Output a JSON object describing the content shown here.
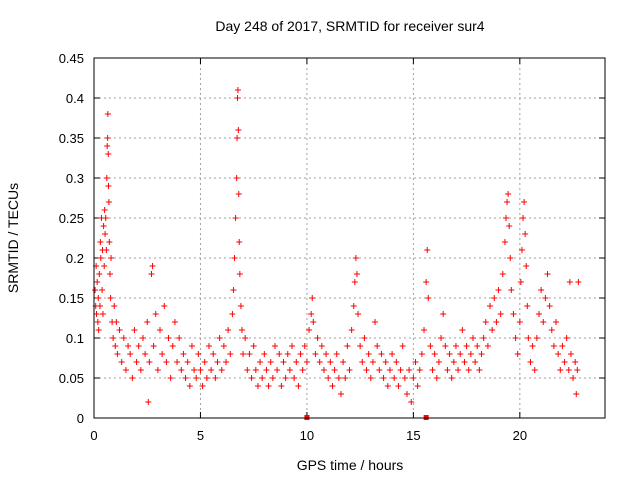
{
  "chart_data": {
    "type": "scatter",
    "title": "Day 248 of 2017, SRMTID for receiver sur4",
    "xlabel": "GPS time / hours",
    "ylabel": "SRMTID / TECUs",
    "xlim": [
      0,
      24
    ],
    "ylim": [
      0,
      0.45
    ],
    "grid": true,
    "marker": "+",
    "color": "#ff0000",
    "x_ticks": [
      0,
      5,
      10,
      15,
      20
    ],
    "x_tick_labels": [
      "0",
      "5",
      "10",
      "15",
      "20"
    ],
    "y_ticks": [
      0,
      0.05,
      0.1,
      0.15,
      0.2,
      0.25,
      0.3,
      0.35,
      0.4,
      0.45
    ],
    "y_tick_labels": [
      "0",
      "0.05",
      "0.1",
      "0.15",
      "0.2",
      "0.25",
      "0.3",
      "0.35",
      "0.4",
      "0.45"
    ],
    "series": [
      {
        "name": "SRMTID",
        "points": [
          [
            0.05,
            0.16
          ],
          [
            0.08,
            0.14
          ],
          [
            0.1,
            0.19
          ],
          [
            0.12,
            0.13
          ],
          [
            0.15,
            0.17
          ],
          [
            0.18,
            0.12
          ],
          [
            0.2,
            0.15
          ],
          [
            0.22,
            0.11
          ],
          [
            0.25,
            0.18
          ],
          [
            0.28,
            0.14
          ],
          [
            0.3,
            0.22
          ],
          [
            0.32,
            0.2
          ],
          [
            0.35,
            0.25
          ],
          [
            0.38,
            0.16
          ],
          [
            0.4,
            0.21
          ],
          [
            0.42,
            0.13
          ],
          [
            0.45,
            0.24
          ],
          [
            0.48,
            0.19
          ],
          [
            0.5,
            0.26
          ],
          [
            0.52,
            0.23
          ],
          [
            0.55,
            0.25
          ],
          [
            0.58,
            0.21
          ],
          [
            0.6,
            0.3
          ],
          [
            0.62,
            0.34
          ],
          [
            0.64,
            0.35
          ],
          [
            0.65,
            0.38
          ],
          [
            0.67,
            0.33
          ],
          [
            0.68,
            0.29
          ],
          [
            0.7,
            0.27
          ],
          [
            0.72,
            0.22
          ],
          [
            0.75,
            0.18
          ],
          [
            0.78,
            0.15
          ],
          [
            0.8,
            0.2
          ],
          [
            0.85,
            0.12
          ],
          [
            0.9,
            0.1
          ],
          [
            0.95,
            0.14
          ],
          [
            1.0,
            0.09
          ],
          [
            1.05,
            0.12
          ],
          [
            1.1,
            0.08
          ],
          [
            1.2,
            0.11
          ],
          [
            1.3,
            0.07
          ],
          [
            1.4,
            0.1
          ],
          [
            1.5,
            0.06
          ],
          [
            1.6,
            0.09
          ],
          [
            1.7,
            0.08
          ],
          [
            1.8,
            0.05
          ],
          [
            1.9,
            0.11
          ],
          [
            2.0,
            0.07
          ],
          [
            2.1,
            0.09
          ],
          [
            2.2,
            0.06
          ],
          [
            2.3,
            0.1
          ],
          [
            2.4,
            0.08
          ],
          [
            2.5,
            0.12
          ],
          [
            2.55,
            0.02
          ],
          [
            2.6,
            0.07
          ],
          [
            2.7,
            0.18
          ],
          [
            2.75,
            0.19
          ],
          [
            2.8,
            0.09
          ],
          [
            2.9,
            0.13
          ],
          [
            3.0,
            0.06
          ],
          [
            3.1,
            0.11
          ],
          [
            3.2,
            0.08
          ],
          [
            3.3,
            0.14
          ],
          [
            3.4,
            0.07
          ],
          [
            3.5,
            0.1
          ],
          [
            3.6,
            0.05
          ],
          [
            3.7,
            0.09
          ],
          [
            3.8,
            0.12
          ],
          [
            3.9,
            0.07
          ],
          [
            4.0,
            0.1
          ],
          [
            4.1,
            0.06
          ],
          [
            4.2,
            0.08
          ],
          [
            4.3,
            0.05
          ],
          [
            4.4,
            0.07
          ],
          [
            4.5,
            0.04
          ],
          [
            4.6,
            0.09
          ],
          [
            4.7,
            0.06
          ],
          [
            4.8,
            0.05
          ],
          [
            4.9,
            0.08
          ],
          [
            5.0,
            0.06
          ],
          [
            5.1,
            0.04
          ],
          [
            5.2,
            0.07
          ],
          [
            5.3,
            0.05
          ],
          [
            5.4,
            0.09
          ],
          [
            5.5,
            0.06
          ],
          [
            5.6,
            0.08
          ],
          [
            5.7,
            0.05
          ],
          [
            5.8,
            0.07
          ],
          [
            5.9,
            0.1
          ],
          [
            6.0,
            0.06
          ],
          [
            6.1,
            0.09
          ],
          [
            6.2,
            0.07
          ],
          [
            6.3,
            0.11
          ],
          [
            6.4,
            0.08
          ],
          [
            6.5,
            0.13
          ],
          [
            6.55,
            0.16
          ],
          [
            6.6,
            0.2
          ],
          [
            6.65,
            0.25
          ],
          [
            6.7,
            0.3
          ],
          [
            6.72,
            0.35
          ],
          [
            6.74,
            0.4
          ],
          [
            6.76,
            0.41
          ],
          [
            6.78,
            0.36
          ],
          [
            6.8,
            0.28
          ],
          [
            6.82,
            0.22
          ],
          [
            6.85,
            0.18
          ],
          [
            6.9,
            0.14
          ],
          [
            6.95,
            0.11
          ],
          [
            7.0,
            0.08
          ],
          [
            7.1,
            0.1
          ],
          [
            7.2,
            0.06
          ],
          [
            7.3,
            0.08
          ],
          [
            7.4,
            0.05
          ],
          [
            7.5,
            0.09
          ],
          [
            7.6,
            0.06
          ],
          [
            7.7,
            0.04
          ],
          [
            7.8,
            0.07
          ],
          [
            7.9,
            0.05
          ],
          [
            8.0,
            0.08
          ],
          [
            8.1,
            0.06
          ],
          [
            8.2,
            0.04
          ],
          [
            8.3,
            0.07
          ],
          [
            8.4,
            0.05
          ],
          [
            8.5,
            0.09
          ],
          [
            8.6,
            0.06
          ],
          [
            8.7,
            0.08
          ],
          [
            8.8,
            0.04
          ],
          [
            8.9,
            0.07
          ],
          [
            9.0,
            0.05
          ],
          [
            9.1,
            0.08
          ],
          [
            9.2,
            0.06
          ],
          [
            9.3,
            0.09
          ],
          [
            9.4,
            0.05
          ],
          [
            9.5,
            0.07
          ],
          [
            9.6,
            0.04
          ],
          [
            9.7,
            0.08
          ],
          [
            9.8,
            0.06
          ],
          [
            9.9,
            0.09
          ],
          [
            10.0,
            0.07
          ],
          [
            10.1,
            0.11
          ],
          [
            10.2,
            0.13
          ],
          [
            10.25,
            0.15
          ],
          [
            10.3,
            0.12
          ],
          [
            10.4,
            0.08
          ],
          [
            10.5,
            0.1
          ],
          [
            10.6,
            0.07
          ],
          [
            10.7,
            0.09
          ],
          [
            10.8,
            0.06
          ],
          [
            10.9,
            0.08
          ],
          [
            11.0,
            0.05
          ],
          [
            11.1,
            0.07
          ],
          [
            11.2,
            0.04
          ],
          [
            11.3,
            0.06
          ],
          [
            11.4,
            0.08
          ],
          [
            11.5,
            0.05
          ],
          [
            11.6,
            0.03
          ],
          [
            11.7,
            0.07
          ],
          [
            11.8,
            0.05
          ],
          [
            11.9,
            0.09
          ],
          [
            12.0,
            0.06
          ],
          [
            12.1,
            0.11
          ],
          [
            12.2,
            0.14
          ],
          [
            12.25,
            0.17
          ],
          [
            12.3,
            0.2
          ],
          [
            12.35,
            0.18
          ],
          [
            12.4,
            0.13
          ],
          [
            12.5,
            0.09
          ],
          [
            12.6,
            0.07
          ],
          [
            12.7,
            0.1
          ],
          [
            12.8,
            0.06
          ],
          [
            12.9,
            0.08
          ],
          [
            13.0,
            0.05
          ],
          [
            13.1,
            0.07
          ],
          [
            13.2,
            0.12
          ],
          [
            13.3,
            0.09
          ],
          [
            13.4,
            0.06
          ],
          [
            13.5,
            0.08
          ],
          [
            13.6,
            0.05
          ],
          [
            13.7,
            0.07
          ],
          [
            13.8,
            0.04
          ],
          [
            13.9,
            0.06
          ],
          [
            14.0,
            0.08
          ],
          [
            14.1,
            0.05
          ],
          [
            14.2,
            0.07
          ],
          [
            14.3,
            0.04
          ],
          [
            14.4,
            0.06
          ],
          [
            14.5,
            0.09
          ],
          [
            14.6,
            0.05
          ],
          [
            14.7,
            0.03
          ],
          [
            14.8,
            0.06
          ],
          [
            14.9,
            0.02
          ],
          [
            15.0,
            0.05
          ],
          [
            15.1,
            0.07
          ],
          [
            15.2,
            0.04
          ],
          [
            15.3,
            0.06
          ],
          [
            15.4,
            0.08
          ],
          [
            15.5,
            0.11
          ],
          [
            15.6,
            0.17
          ],
          [
            15.65,
            0.21
          ],
          [
            15.7,
            0.15
          ],
          [
            15.8,
            0.09
          ],
          [
            15.9,
            0.06
          ],
          [
            16.0,
            0.08
          ],
          [
            16.1,
            0.05
          ],
          [
            16.2,
            0.07
          ],
          [
            16.3,
            0.1
          ],
          [
            16.4,
            0.13
          ],
          [
            16.5,
            0.09
          ],
          [
            16.6,
            0.06
          ],
          [
            16.7,
            0.08
          ],
          [
            16.8,
            0.05
          ],
          [
            16.9,
            0.07
          ],
          [
            17.0,
            0.09
          ],
          [
            17.1,
            0.06
          ],
          [
            17.2,
            0.08
          ],
          [
            17.3,
            0.11
          ],
          [
            17.4,
            0.07
          ],
          [
            17.5,
            0.09
          ],
          [
            17.6,
            0.06
          ],
          [
            17.7,
            0.08
          ],
          [
            17.8,
            0.1
          ],
          [
            17.9,
            0.07
          ],
          [
            18.0,
            0.09
          ],
          [
            18.1,
            0.06
          ],
          [
            18.2,
            0.08
          ],
          [
            18.3,
            0.1
          ],
          [
            18.4,
            0.12
          ],
          [
            18.5,
            0.09
          ],
          [
            18.6,
            0.14
          ],
          [
            18.7,
            0.11
          ],
          [
            18.8,
            0.15
          ],
          [
            18.9,
            0.12
          ],
          [
            19.0,
            0.16
          ],
          [
            19.1,
            0.13
          ],
          [
            19.2,
            0.18
          ],
          [
            19.3,
            0.22
          ],
          [
            19.35,
            0.25
          ],
          [
            19.4,
            0.27
          ],
          [
            19.45,
            0.28
          ],
          [
            19.5,
            0.24
          ],
          [
            19.55,
            0.2
          ],
          [
            19.6,
            0.16
          ],
          [
            19.7,
            0.13
          ],
          [
            19.8,
            0.1
          ],
          [
            19.9,
            0.08
          ],
          [
            20.0,
            0.12
          ],
          [
            20.05,
            0.17
          ],
          [
            20.1,
            0.21
          ],
          [
            20.15,
            0.25
          ],
          [
            20.2,
            0.27
          ],
          [
            20.25,
            0.23
          ],
          [
            20.3,
            0.19
          ],
          [
            20.35,
            0.14
          ],
          [
            20.4,
            0.1
          ],
          [
            20.5,
            0.07
          ],
          [
            20.6,
            0.09
          ],
          [
            20.7,
            0.06
          ],
          [
            20.8,
            0.1
          ],
          [
            20.9,
            0.13
          ],
          [
            21.0,
            0.16
          ],
          [
            21.1,
            0.12
          ],
          [
            21.2,
            0.15
          ],
          [
            21.3,
            0.18
          ],
          [
            21.4,
            0.14
          ],
          [
            21.5,
            0.11
          ],
          [
            21.6,
            0.09
          ],
          [
            21.7,
            0.12
          ],
          [
            21.8,
            0.08
          ],
          [
            21.9,
            0.06
          ],
          [
            22.0,
            0.09
          ],
          [
            22.1,
            0.07
          ],
          [
            22.2,
            0.1
          ],
          [
            22.3,
            0.06
          ],
          [
            22.35,
            0.17
          ],
          [
            22.4,
            0.08
          ],
          [
            22.5,
            0.05
          ],
          [
            22.6,
            0.07
          ],
          [
            22.65,
            0.03
          ],
          [
            22.7,
            0.06
          ],
          [
            22.75,
            0.17
          ]
        ]
      }
    ],
    "axis_markers": [
      {
        "x": 10,
        "y": 0
      },
      {
        "x": 15.6,
        "y": 0
      }
    ]
  }
}
